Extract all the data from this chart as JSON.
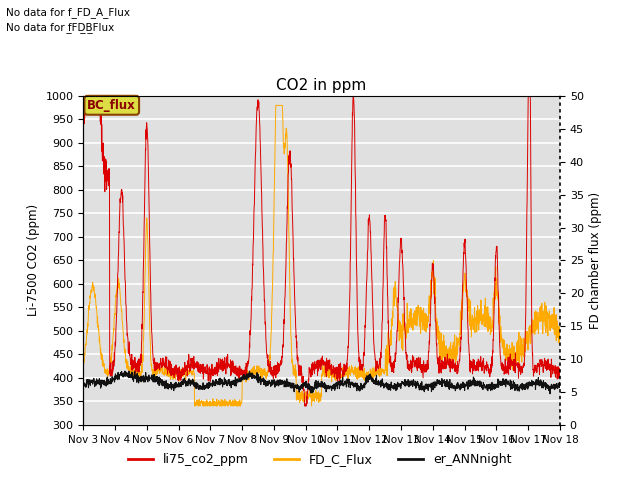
{
  "title": "CO2 in ppm",
  "ylabel_left": "Li-7500 CO2 (ppm)",
  "ylabel_right": "FD chamber flux (ppm)",
  "text_no_data_1": "No data for f_FD_A_Flux",
  "text_no_data_2": "No data for f̲FD̲B̲Flux",
  "legend_bc": "BC_flux",
  "ylim_left": [
    300,
    1000
  ],
  "ylim_right": [
    0,
    50
  ],
  "xtick_labels": [
    "Nov 3",
    "Nov 4",
    "Nov 5",
    "Nov 6",
    "Nov 7",
    "Nov 8",
    "Nov 9",
    "Nov 10",
    "Nov 11",
    "Nov 12",
    "Nov 13",
    "Nov 14",
    "Nov 15",
    "Nov 16",
    "Nov 17",
    "Nov 18"
  ],
  "legend_entries": [
    "li75_co2_ppm",
    "FD_C_Flux",
    "er_ANNnight"
  ],
  "line_colors": [
    "#dd0000",
    "#ffaa00",
    "#111111"
  ],
  "plot_bg_color": "#e0e0e0",
  "grid_color": "#ffffff"
}
